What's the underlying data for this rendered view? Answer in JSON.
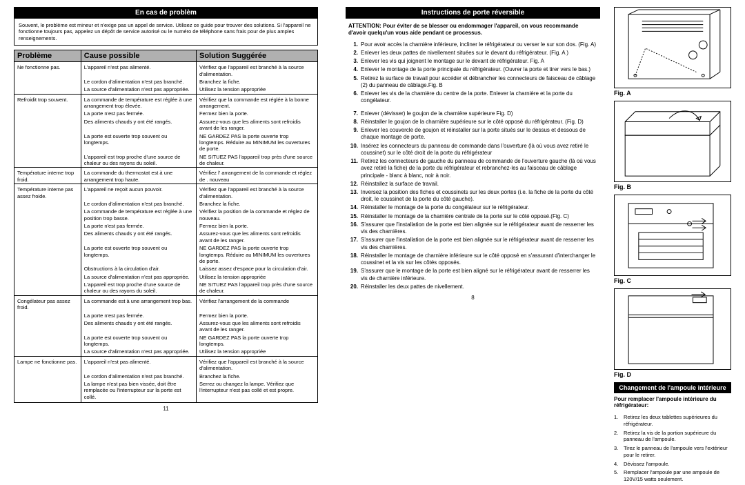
{
  "left": {
    "title": "En cas de problèm",
    "intro": "Souvent, le problème est mineur et n'exige pas un appel de service. Utilisez ce guide pour trouver des solutions. Si l'appareil ne fonctionne toujours pas, appelez un dépôt de service autorisé ou le numéro de téléphone sans frais pour de plus amples renseignements.",
    "headers": [
      "Problème",
      "Cause possible",
      "Solution Suggérée"
    ],
    "groups": [
      {
        "problem": "Ne fonctionne pas.",
        "rows": [
          [
            "L'appareil n'est pas alimenté.",
            "Vérifiez que l'appareil est branché à la source d'alimentation."
          ],
          [
            "Le cordon d'alimentation n'est pas branché.",
            "Branchez la fiche."
          ],
          [
            "La source d'alimentation n'est pas appropriée.",
            "Utilisez la tension appropriée"
          ]
        ]
      },
      {
        "problem": "Refroidit trop souvent.",
        "rows": [
          [
            "La commande de température est réglée à une arrangement trop élevée.",
            "Vérifiez que la commande est réglée à la bonne arrangement."
          ],
          [
            "La porte n'est pas fermée.",
            "Fermez bien la porte."
          ],
          [
            "Des aliments chauds y ont été rangés.",
            "Assurez-vous que les aliments sont refroidis avant de les ranger."
          ],
          [
            "La porte est ouverte trop souvent ou longtemps.",
            "NE GARDEZ PAS la porte ouverte trop longtemps. Réduire au MINIMUM les ouvertures de porte."
          ],
          [
            "L'appareil est trop proche d'une source de chaleur ou des rayons du soleil.",
            "NE SITUEZ PAS l'appareil trop près d'une source de chaleur."
          ]
        ]
      },
      {
        "problem": "Température interne trop froid.",
        "rows": [
          [
            "La commande du thermostat est à une arrangement trop haute.",
            "Vérifiez l' arrangement de la commande et réglez de . nouveau"
          ]
        ]
      },
      {
        "problem": "Température interne pas assez froide.",
        "rows": [
          [
            "L'appareil ne reçoit aucun pouvoir.",
            "Vérifiez que l'appareil est branché à la source d'alimentation."
          ],
          [
            "Le cordon d'alimentation n'est pas branché.",
            "Branchez la fiche."
          ],
          [
            "La commande de température est réglée à une position trop basse.",
            "Vérifiez la position de la commande et réglez de nouveau."
          ],
          [
            "La porte n'est pas fermée.",
            "Fermez bien la porte."
          ],
          [
            "Des aliments chauds y ont été rangés.",
            "Assurez-vous que les aliments sont refroidis avant de les ranger."
          ],
          [
            "La porte est ouverte trop souvent ou longtemps.",
            "NE GARDEZ PAS la porte ouverte trop longtemps. Réduire au MINIMUM les ouvertures de porte."
          ],
          [
            "Obstructions à la circulation d'air.",
            "Laissez assez d'espace pour la circulation d'air."
          ],
          [
            "La source d'alimentation n'est pas appropriée.",
            "Utilisez la tension appropriée"
          ],
          [
            "L'appareil est trop proche d'une source de chaleur ou des rayons du soleil.",
            "NE SITUEZ PAS l'appareil trop près d'une source de chaleur."
          ]
        ]
      },
      {
        "problem": "Congélateur pas assez froid.",
        "rows": [
          [
            "La commande est à une arrangement trop bas.",
            "Vérifiez l'arrangement de la commande"
          ],
          [
            "La porte n'est pas fermée.",
            "Fermez bien la porte."
          ],
          [
            "Des aliments chauds y ont été rangés.",
            "Assurez-vous que les aliments sont refroidis avant de les ranger."
          ],
          [
            "La porte est ouverte trop souvent ou longtemps.",
            "NE GARDEZ PAS la porte ouverte trop longtemps."
          ],
          [
            "La source d'alimentation n'est pas appropriée.",
            "Utilisez la tension appropriée"
          ]
        ]
      },
      {
        "problem": "Lampe ne fonctionne pas.",
        "rows": [
          [
            "L'appareil n'est pas alimenté.",
            "Vérifiez que l'appareil est branché à la source d'alimentation."
          ],
          [
            "Le cordon d'alimentation n'est pas branché.",
            "Branchez la fiche."
          ],
          [
            "La lampe n'est pas bien vissée, doit être remplacée ou l'interrupteur sur la porte est collé.",
            "Serrez ou changez la lampe. Vérifiez que l'interrupteur n'est pas collé et est propre."
          ]
        ]
      }
    ],
    "page": "11"
  },
  "mid": {
    "title": "Instructions de porte réversible",
    "attention": "ATTENTION: Pour éviter de se blesser ou endommager l'appareil, on vous recommande d'avoir quelqu'un vous aide pendant ce processus.",
    "steps": [
      "Pour avoir accès la charnière inférieure, incliner le réfrigérateur ou verser le sur son dos. (Fig. A)",
      "Enlever les deux pattes de nivellement situées sur le devant du réfrigérateur. (Fig. A )",
      "Enlever les vis qui joignent le montage sur le devant de réfrigérateur. Fig. A ",
      "Enlever le montage de la porte principale du réfrigérateur. (Ouvrer la porte et tirer vers le bas.)",
      "Retirez la surface de travail pour accéder et débrancher les connecteurs de faisceau de câblage (2) du panneau de câblage.Fig. B ",
      "Enlever les vis de la charnière du centre de la porte. Enlever la charnière et la porte du congélateur.",
      "Enlever (dévisser) le goujon de la charnière supérieure Fig. D)",
      "Réinstaller le goujon de la charnière supérieure sur le côté opposé du réfrigérateur. (Fig. D)",
      "Enlever les couvercle de goujon et réinstaller sur la porte situés sur le dessus et dessous de chaque montage de porte.",
      "Insérez les connecteurs du panneau de commande dans l'ouverture (là où vous avez retiré le coussinet) sur le côté droit de la porte du réfrigérateur",
      "Retirez les connecteurs de gauche du panneau de commande de l'ouverture gauche (là où vous avez retiré la fiche) de la porte du réfrigérateur et rebranchez-les au faisceau de câblage principale - blanc à blanc, noir à noir.",
      "Réinstallez la surface de travail.",
      "Inversez la position des fiches et coussinets sur les deux portes (i.e. la fiche de la porte du côté droit, le coussinet de la porte du côté gauche).",
      "Réinstaller le montage de la porte du congélateur sur le réfrigérateur.",
      "Réinstaller le montage de la charnière centrale de la porte sur le côté opposé.(Fig. C)",
      "S'assurer que l'installation de la porte est bien alignée sur le réfrigérateur avant de resserrer les vis des charnières.",
      "S'assurer que l'installation de la porte est bien alignée sur le réfrigérateur avant de resserrer les vis des charnières.",
      "Réinstaller le montage de charnière inférieure sur le côté opposé en s'assurant d'interchanger le coussinet et la vis sur les côtés opposés.",
      "S'assurer que le montage de la porte est bien aligné sur le réfrigérateur avant de resserrer les vis de charnière inférieure.",
      "Réinstaller les deux pattes de nivellement."
    ],
    "page": "8"
  },
  "right": {
    "labels": [
      "Fig. A",
      "Fig. B",
      "Fig. C",
      "Fig. D"
    ],
    "title": "Changement de l'ampoule intérieure",
    "sub": "Pour remplacer l'ampoule intérieure du réfrigérateur:",
    "steps": [
      "Retirez les deux tablettes supérieures du réfrigérateur.",
      "Retirez la vis de la portion supérieure du panneau de l'ampoule.",
      "Tirez le panneau de l'ampoule vers l'extérieur pour le retirer.",
      "Dévissez l'ampoule.",
      "Remplacer l'ampoule par une ampoule de 120V/15 watts seulement."
    ]
  }
}
